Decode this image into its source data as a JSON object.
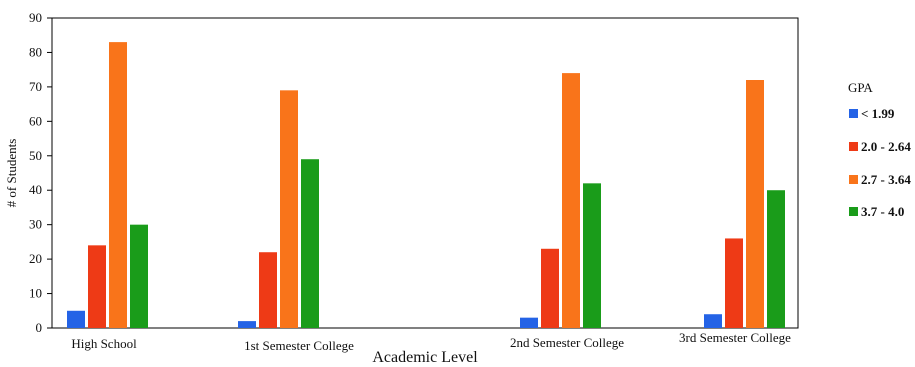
{
  "chart_data": {
    "type": "bar",
    "title": "",
    "xlabel": "Academic Level",
    "ylabel": "# of Students",
    "ylim": [
      0,
      90
    ],
    "yticks": [
      0,
      10,
      20,
      30,
      40,
      50,
      60,
      70,
      80,
      90
    ],
    "grid": false,
    "legend_title": "GPA",
    "legend_position": "right",
    "categories": [
      "High School",
      "1st Semester College",
      "2nd Semester College",
      "3rd Semester College"
    ],
    "series": [
      {
        "name": "< 1.99",
        "color": "#2463e6",
        "values": [
          5,
          2,
          3,
          4
        ]
      },
      {
        "name": "2.0 - 2.64",
        "color": "#ee3a16",
        "values": [
          24,
          22,
          23,
          26
        ]
      },
      {
        "name": "2.7 - 3.64",
        "color": "#f9741a",
        "values": [
          83,
          69,
          74,
          72
        ]
      },
      {
        "name": "3.7 - 4.0",
        "color": "#1a9c1a",
        "values": [
          30,
          49,
          42,
          40
        ]
      }
    ]
  }
}
